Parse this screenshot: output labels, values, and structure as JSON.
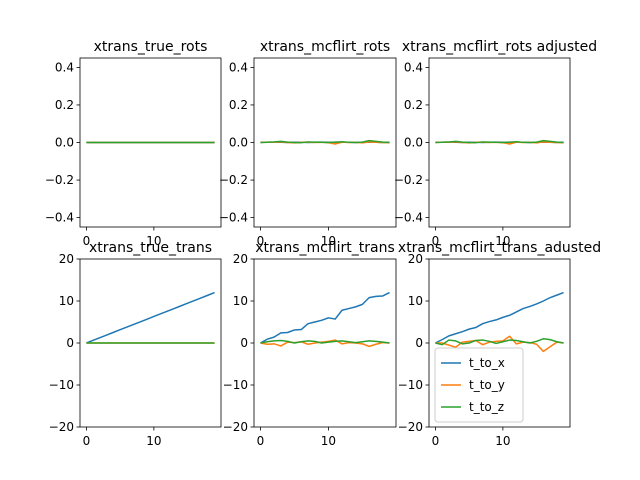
{
  "figure": {
    "colors": {
      "t_to_x": "#1f77b4",
      "t_to_y": "#ff7f0e",
      "t_to_z": "#2ca02c"
    }
  },
  "chart_data": [
    {
      "type": "line",
      "title": "xtrans_true_rots",
      "xlim": [
        -0.95,
        19.95
      ],
      "ylim": [
        -0.45,
        0.45
      ],
      "xticks": [
        0,
        10
      ],
      "yticks": [
        -0.4,
        -0.2,
        0.0,
        0.2,
        0.4
      ],
      "xtick_labels": [
        "0",
        "10"
      ],
      "ytick_labels": [
        "−0.4",
        "−0.2",
        "0.0",
        "0.2",
        "0.4"
      ],
      "x": [
        0,
        1,
        2,
        3,
        4,
        5,
        6,
        7,
        8,
        9,
        10,
        11,
        12,
        13,
        14,
        15,
        16,
        17,
        18,
        19
      ],
      "series": [
        {
          "color": "#1f77b4",
          "values": [
            0,
            0,
            0,
            0,
            0,
            0,
            0,
            0,
            0,
            0,
            0,
            0,
            0,
            0,
            0,
            0,
            0,
            0,
            0,
            0
          ]
        },
        {
          "color": "#ff7f0e",
          "values": [
            0,
            0,
            0,
            0,
            0,
            0,
            0,
            0,
            0,
            0,
            0,
            0,
            0,
            0,
            0,
            0,
            0,
            0,
            0,
            0
          ]
        },
        {
          "color": "#2ca02c",
          "values": [
            0,
            0,
            0,
            0,
            0,
            0,
            0,
            0,
            0,
            0,
            0,
            0,
            0,
            0,
            0,
            0,
            0,
            0,
            0,
            0
          ]
        }
      ]
    },
    {
      "type": "line",
      "title": "xtrans_mcflirt_rots",
      "xlim": [
        -0.95,
        19.95
      ],
      "ylim": [
        -0.45,
        0.45
      ],
      "xticks": [
        0,
        10
      ],
      "yticks": [
        -0.4,
        -0.2,
        0.0,
        0.2,
        0.4
      ],
      "xtick_labels": [
        "0",
        "10"
      ],
      "ytick_labels": [
        "−0.4",
        "−0.2",
        "0.0",
        "0.2",
        "0.4"
      ],
      "x": [
        0,
        1,
        2,
        3,
        4,
        5,
        6,
        7,
        8,
        9,
        10,
        11,
        12,
        13,
        14,
        15,
        16,
        17,
        18,
        19
      ],
      "series": [
        {
          "color": "#1f77b4",
          "values": [
            0.001,
            0.001,
            0.002,
            0.001,
            0.0,
            0.001,
            0.001,
            0.0,
            0.001,
            0.002,
            0.001,
            0.0,
            0.001,
            0.001,
            0.0,
            0.001,
            0.002,
            0.001,
            0.0,
            0.001
          ]
        },
        {
          "color": "#ff7f0e",
          "values": [
            0.0,
            0.002,
            0.001,
            0.003,
            0.0,
            -0.002,
            0.001,
            0.002,
            0.0,
            0.001,
            -0.001,
            -0.008,
            0.002,
            0.0,
            0.001,
            -0.002,
            0.003,
            0.001,
            0.0,
            -0.001
          ]
        },
        {
          "color": "#2ca02c",
          "values": [
            0.0,
            0.001,
            0.003,
            0.006,
            0.002,
            0.0,
            -0.001,
            0.003,
            0.002,
            0.001,
            0.0,
            0.002,
            0.004,
            0.001,
            0.0,
            0.002,
            0.01,
            0.006,
            0.002,
            0.0
          ]
        }
      ]
    },
    {
      "type": "line",
      "title": "xtrans_mcflirt_rots adjusted",
      "xlim": [
        -0.95,
        19.95
      ],
      "ylim": [
        -0.45,
        0.45
      ],
      "xticks": [
        0,
        10
      ],
      "yticks": [
        -0.4,
        -0.2,
        0.0,
        0.2,
        0.4
      ],
      "xtick_labels": [
        "0",
        "10"
      ],
      "ytick_labels": [
        "−0.4",
        "−0.2",
        "0.0",
        "0.2",
        "0.4"
      ],
      "x": [
        0,
        1,
        2,
        3,
        4,
        5,
        6,
        7,
        8,
        9,
        10,
        11,
        12,
        13,
        14,
        15,
        16,
        17,
        18,
        19
      ],
      "series": [
        {
          "color": "#1f77b4",
          "values": [
            0.001,
            0.001,
            0.002,
            0.001,
            0.0,
            0.001,
            0.001,
            0.0,
            0.001,
            0.002,
            0.001,
            0.0,
            0.001,
            0.001,
            0.0,
            0.001,
            0.002,
            0.001,
            0.0,
            0.001
          ]
        },
        {
          "color": "#ff7f0e",
          "values": [
            0.0,
            0.002,
            0.001,
            0.003,
            0.0,
            -0.002,
            0.001,
            0.002,
            0.0,
            0.001,
            -0.001,
            -0.008,
            0.002,
            0.0,
            0.001,
            -0.002,
            0.003,
            0.001,
            0.0,
            -0.001
          ]
        },
        {
          "color": "#2ca02c",
          "values": [
            0.0,
            0.001,
            0.003,
            0.006,
            0.002,
            0.0,
            -0.001,
            0.003,
            0.002,
            0.001,
            0.0,
            0.002,
            0.004,
            0.001,
            0.0,
            0.002,
            0.01,
            0.006,
            0.002,
            0.0
          ]
        }
      ]
    },
    {
      "type": "line",
      "title": "xtrans_true_trans",
      "xlim": [
        -0.95,
        19.95
      ],
      "ylim": [
        -20,
        20
      ],
      "xticks": [
        0,
        10
      ],
      "yticks": [
        -20,
        -10,
        0,
        10,
        20
      ],
      "xtick_labels": [
        "0",
        "10"
      ],
      "ytick_labels": [
        "−20",
        "−10",
        "0",
        "10",
        "20"
      ],
      "x": [
        0,
        1,
        2,
        3,
        4,
        5,
        6,
        7,
        8,
        9,
        10,
        11,
        12,
        13,
        14,
        15,
        16,
        17,
        18,
        19
      ],
      "series": [
        {
          "color": "#1f77b4",
          "values": [
            0,
            0.63,
            1.26,
            1.89,
            2.53,
            3.16,
            3.79,
            4.42,
            5.05,
            5.68,
            6.32,
            6.95,
            7.58,
            8.21,
            8.84,
            9.47,
            10.11,
            10.74,
            11.37,
            12.0
          ]
        },
        {
          "color": "#ff7f0e",
          "values": [
            0,
            0,
            0,
            0,
            0,
            0,
            0,
            0,
            0,
            0,
            0,
            0,
            0,
            0,
            0,
            0,
            0,
            0,
            0,
            0
          ]
        },
        {
          "color": "#2ca02c",
          "values": [
            0,
            0,
            0,
            0,
            0,
            0,
            0,
            0,
            0,
            0,
            0,
            0,
            0,
            0,
            0,
            0,
            0,
            0,
            0,
            0
          ]
        }
      ]
    },
    {
      "type": "line",
      "title": "xtrans_mcflirt_trans",
      "xlim": [
        -0.95,
        19.95
      ],
      "ylim": [
        -20,
        20
      ],
      "xticks": [
        0,
        10
      ],
      "yticks": [
        -20,
        -10,
        0,
        10,
        20
      ],
      "xtick_labels": [
        "0",
        "10"
      ],
      "ytick_labels": [
        "−20",
        "−10",
        "0",
        "10",
        "20"
      ],
      "x": [
        0,
        1,
        2,
        3,
        4,
        5,
        6,
        7,
        8,
        9,
        10,
        11,
        12,
        13,
        14,
        15,
        16,
        17,
        18,
        19
      ],
      "series": [
        {
          "color": "#1f77b4",
          "values": [
            0,
            0.9,
            1.4,
            2.4,
            2.5,
            3.1,
            3.2,
            4.6,
            5.0,
            5.4,
            6.0,
            5.7,
            7.8,
            8.2,
            8.6,
            9.2,
            10.8,
            11.1,
            11.2,
            12.0
          ]
        },
        {
          "color": "#ff7f0e",
          "values": [
            0,
            -0.3,
            -0.2,
            -0.7,
            0.2,
            0.1,
            0.3,
            -0.3,
            0.0,
            0.2,
            0.4,
            0.7,
            -0.2,
            0.1,
            0.0,
            -0.2,
            -0.8,
            -0.3,
            0.1,
            0.0
          ]
        },
        {
          "color": "#2ca02c",
          "values": [
            0,
            0.3,
            0.5,
            0.6,
            0.4,
            0.0,
            0.3,
            0.5,
            0.4,
            0.0,
            0.2,
            0.4,
            0.5,
            0.3,
            0.1,
            0.3,
            0.5,
            0.4,
            0.2,
            0.0
          ]
        }
      ]
    },
    {
      "type": "line",
      "title": "xtrans_mcflirt_trans_adusted",
      "xlim": [
        -0.95,
        19.95
      ],
      "ylim": [
        -20,
        20
      ],
      "xticks": [
        0,
        10
      ],
      "yticks": [
        -20,
        -10,
        0,
        10,
        20
      ],
      "xtick_labels": [
        "0",
        "10"
      ],
      "ytick_labels": [
        "−20",
        "−10",
        "0",
        "10",
        "20"
      ],
      "x": [
        0,
        1,
        2,
        3,
        4,
        5,
        6,
        7,
        8,
        9,
        10,
        11,
        12,
        13,
        14,
        15,
        16,
        17,
        18,
        19
      ],
      "legend": {
        "placement": "lower-left"
      },
      "series": [
        {
          "name": "t_to_x",
          "color": "#1f77b4",
          "values": [
            0,
            0.8,
            1.7,
            2.2,
            2.7,
            3.3,
            3.7,
            4.6,
            5.1,
            5.5,
            6.1,
            6.6,
            7.4,
            8.2,
            8.7,
            9.3,
            10.0,
            10.8,
            11.4,
            12.0
          ]
        },
        {
          "name": "t_to_y",
          "color": "#ff7f0e",
          "values": [
            0,
            0.0,
            -0.5,
            -1.0,
            0.2,
            0.4,
            0.6,
            -0.4,
            0.2,
            0.4,
            0.5,
            1.6,
            -0.2,
            0.2,
            0.1,
            -0.3,
            -2.0,
            -0.9,
            0.2,
            0.0
          ]
        },
        {
          "name": "t_to_z",
          "color": "#2ca02c",
          "values": [
            0,
            -0.4,
            0.7,
            0.5,
            -0.2,
            0.0,
            0.6,
            0.7,
            0.4,
            -0.1,
            0.3,
            0.7,
            0.6,
            0.3,
            0.0,
            0.4,
            1.0,
            0.8,
            0.3,
            0.0
          ]
        }
      ]
    }
  ]
}
